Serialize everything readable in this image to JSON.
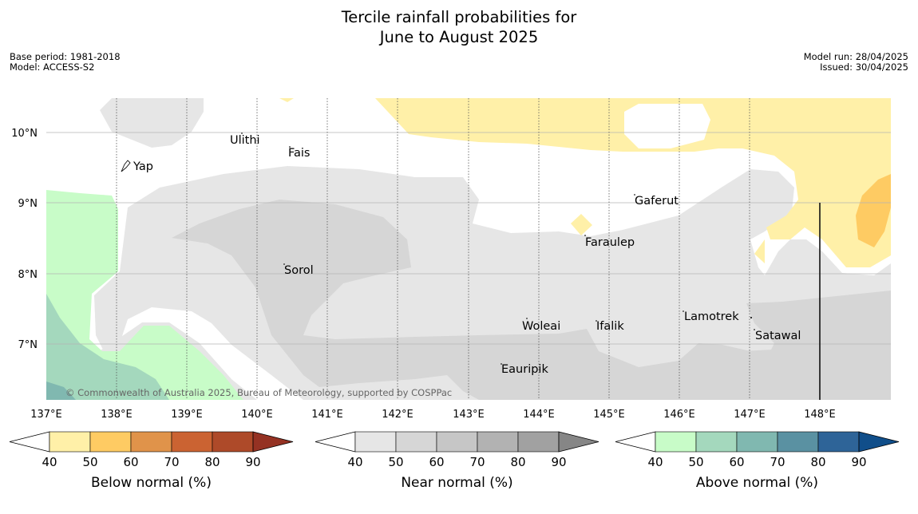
{
  "title_line1": "Tercile rainfall probabilities for",
  "title_line2": "June to August 2025",
  "meta_left": [
    "Base period: 1981-2018",
    "Model: ACCESS-S2"
  ],
  "meta_right": [
    "Model run: 28/04/2025",
    "Issued: 30/04/2025"
  ],
  "lat_labels": [
    "10°N",
    "9°N",
    "8°N",
    "7°N"
  ],
  "lon_labels": [
    "137°E",
    "138°E",
    "139°E",
    "140°E",
    "141°E",
    "142°E",
    "143°E",
    "144°E",
    "145°E",
    "146°E",
    "147°E",
    "148°E"
  ],
  "places": [
    "Ulithi",
    "Fais",
    "Yap",
    "Gaferut",
    "Faraulep",
    "Sorol",
    "Woleai",
    "Ifalik",
    "Lamotrek",
    "Satawal",
    "Eauripik"
  ],
  "copyright": "© Commonwealth of Australia 2025, Bureau of Meteorology, supported by COSPPac",
  "colorbars": [
    {
      "label": "Below normal (%)",
      "ticks": [
        "40",
        "50",
        "60",
        "70",
        "80",
        "90"
      ],
      "colors": [
        "#fff0a8",
        "#fecb63",
        "#e0934a",
        "#cb6332",
        "#ae4a29",
        "#953223"
      ]
    },
    {
      "label": "Near normal (%)",
      "ticks": [
        "40",
        "50",
        "60",
        "70",
        "80",
        "90"
      ],
      "colors": [
        "#e6e6e6",
        "#d6d6d6",
        "#c6c6c6",
        "#b2b2b2",
        "#a1a1a1",
        "#868686"
      ]
    },
    {
      "label": "Above normal (%)",
      "ticks": [
        "40",
        "50",
        "60",
        "70",
        "80",
        "90"
      ],
      "colors": [
        "#c8fcc8",
        "#a4d8bd",
        "#80b8b0",
        "#5a91a2",
        "#2e6498",
        "#104e8a"
      ]
    }
  ]
}
